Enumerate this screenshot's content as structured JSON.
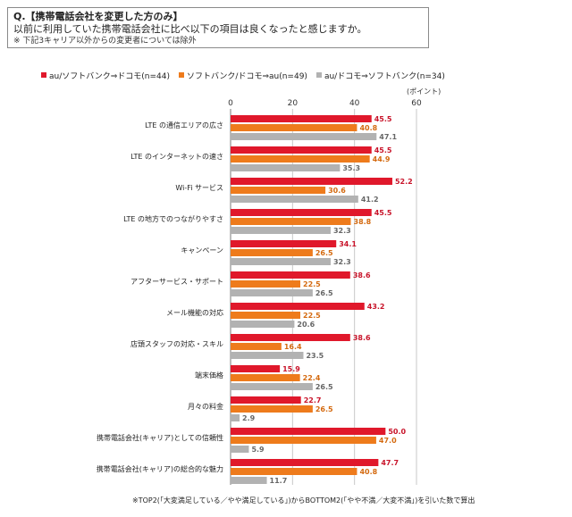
{
  "question": {
    "line1": "Q.【携帯電話会社を変更した方のみ】",
    "line2": "以前に利用していた携帯電話会社に比べ以下の項目は良くなったと感じますか。",
    "note": "※ 下記3キャリア以外からの変更者については除外"
  },
  "unit_label": "(ポイント)",
  "footnote": "※TOP2(「大変満足している／やや満足している」)からBOTTOM2(「やや不満／大変不満」)を引いた数で算出",
  "colors": {
    "series1": "#e0182b",
    "series2": "#ee7b1c",
    "series3": "#b2b2b2",
    "label1": "#c8142a",
    "label2": "#d46a10",
    "label3": "#666666"
  },
  "chart_data": {
    "type": "bar",
    "orientation": "horizontal",
    "categories": [
      "LTE の通信エリアの広さ",
      "LTE のインターネットの速さ",
      "Wi-Fi サービス",
      "LTE の地方でのつながりやすさ",
      "キャンペーン",
      "アフターサービス・サポート",
      "メール機能の対応",
      "店頭スタッフの対応・スキル",
      "端末価格",
      "月々の料金",
      "携帯電話会社(キャリア)としての信頼性",
      "携帯電話会社(キャリア)の総合的な魅力"
    ],
    "series": [
      {
        "name": "au/ソフトバンク⇒ドコモ(n=44)",
        "values": [
          45.5,
          45.5,
          52.2,
          45.5,
          34.1,
          38.6,
          43.2,
          38.6,
          15.9,
          22.7,
          50.0,
          47.7
        ],
        "labels": [
          "45.5",
          "45.5",
          "52.2",
          "45.5",
          "34.1",
          "38.6",
          "43.2",
          "38.6",
          "15.9",
          "22.7",
          "50.0",
          "47.7"
        ]
      },
      {
        "name": "ソフトバンク/ドコモ⇒au(n=49)",
        "values": [
          40.8,
          44.9,
          30.6,
          38.8,
          26.5,
          22.5,
          22.5,
          16.4,
          22.4,
          26.5,
          47.0,
          40.8
        ],
        "labels": [
          "40.8",
          "44.9",
          "30.6",
          "38.8",
          "26.5",
          "22.5",
          "22.5",
          "16.4",
          "22.4",
          "26.5",
          "47.0",
          "40.8"
        ]
      },
      {
        "name": "au/ドコモ⇒ソフトバンク(n=34)",
        "values": [
          47.1,
          35.3,
          41.2,
          32.3,
          32.3,
          26.5,
          20.6,
          23.5,
          26.5,
          2.9,
          5.9,
          11.7
        ],
        "labels": [
          "47.1",
          "35.3",
          "41.2",
          "32.3",
          "32.3",
          "26.5",
          "20.6",
          "23.5",
          "26.5",
          "2.9",
          "5.9",
          "11.7"
        ]
      }
    ],
    "xlim": [
      0,
      60
    ],
    "xticks": [
      "0",
      "20",
      "40",
      "60"
    ],
    "grid": true,
    "legend_position": "top"
  }
}
